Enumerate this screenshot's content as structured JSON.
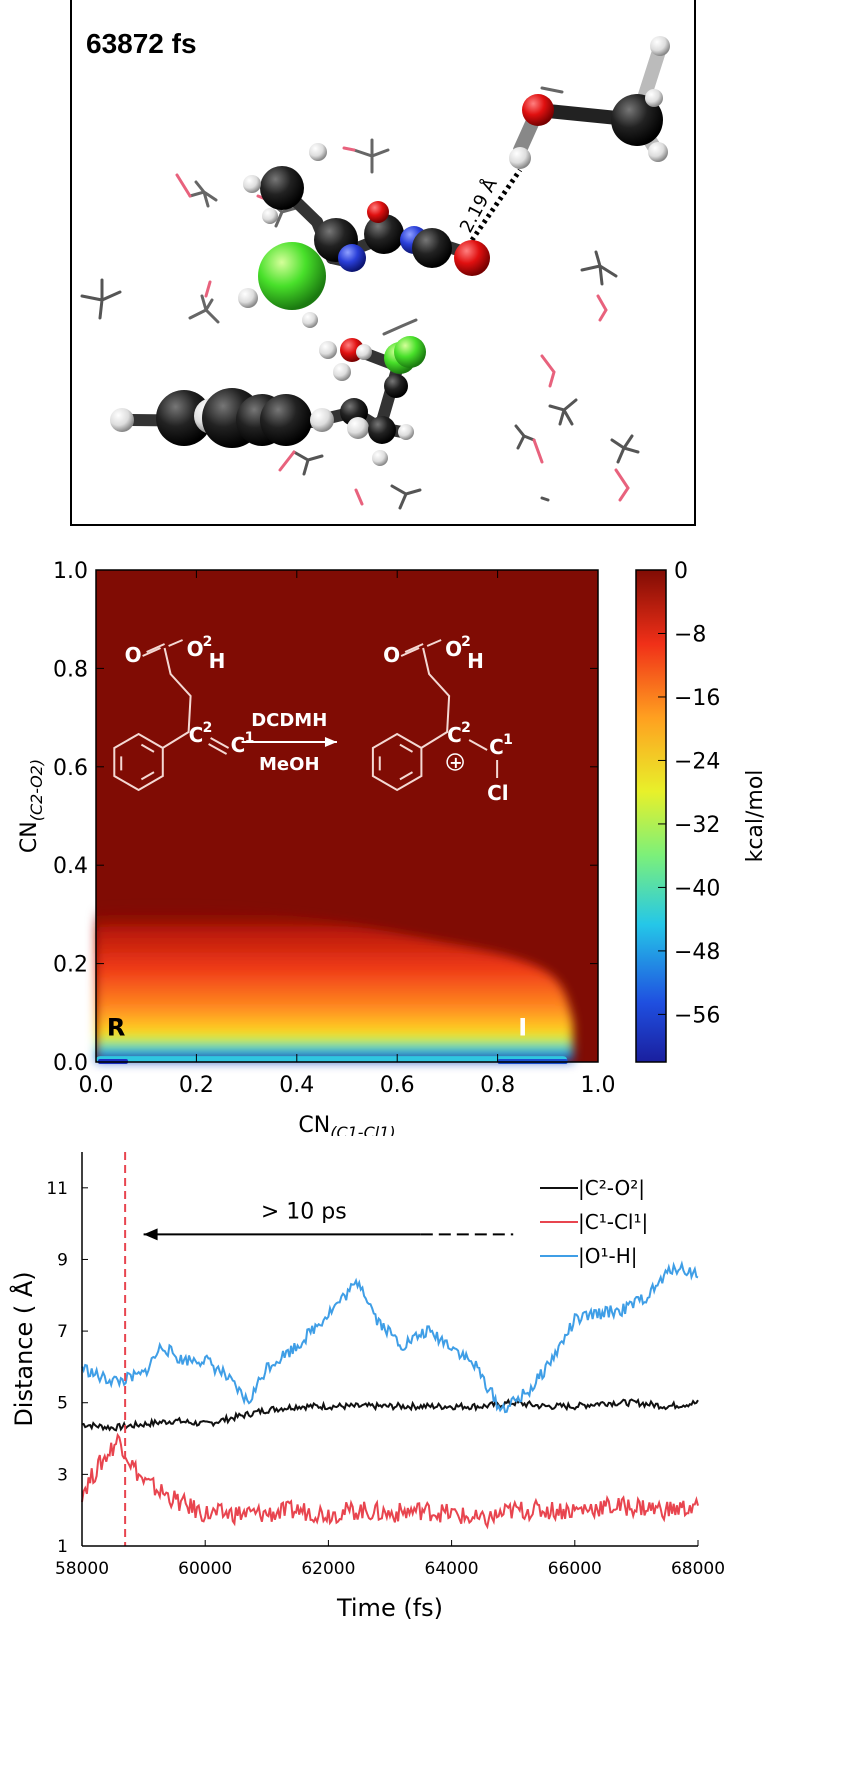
{
  "panel_a": {
    "timestamp": "63872 fs",
    "distance_label": "2.19 Å"
  },
  "chart_data": [
    {
      "type": "heatmap",
      "title": "",
      "xlabel": "CN",
      "xlabel_subscript": "(C1-Cl1)",
      "ylabel": "CN",
      "ylabel_subscript": "(C2-O2)",
      "xlim": [
        0.0,
        1.0
      ],
      "ylim": [
        0.0,
        1.0
      ],
      "xticks": [
        "0.0",
        "0.2",
        "0.4",
        "0.6",
        "0.8",
        "1.0"
      ],
      "yticks": [
        "0.0",
        "0.2",
        "0.4",
        "0.6",
        "0.8",
        "1.0"
      ],
      "colorbar": {
        "label": "kcal/mol",
        "range": [
          -62,
          0
        ],
        "ticks": [
          "0",
          "−8",
          "−16",
          "−24",
          "−32",
          "−40",
          "−48",
          "−56"
        ],
        "colormap": "jet"
      },
      "free_energy_profile": {
        "description_rows": [
          {
            "cn_c2_o2": 0.0,
            "kcal_mol": -62
          },
          {
            "cn_c2_o2": 0.02,
            "kcal_mol": -45
          },
          {
            "cn_c2_o2": 0.04,
            "kcal_mol": -24
          },
          {
            "cn_c2_o2": 0.08,
            "kcal_mol": -14
          },
          {
            "cn_c2_o2": 0.15,
            "kcal_mol": -8
          },
          {
            "cn_c2_o2": 0.25,
            "kcal_mol": -3
          },
          {
            "cn_c2_o2": 0.32,
            "kcal_mol": 0
          }
        ],
        "x_extent": [
          0.0,
          0.95
        ]
      },
      "annotations": [
        {
          "text": "R",
          "x": 0.04,
          "y": 0.07
        },
        {
          "text": "I",
          "x": 0.85,
          "y": 0.07
        }
      ],
      "scheme": {
        "reagent": "DCDMH",
        "solvent": "MeOH",
        "reactant_labels": [
          "O",
          "2",
          "H",
          "O",
          "C",
          "2",
          "C",
          "1"
        ],
        "product_labels": [
          "O",
          "2",
          "H",
          "O",
          "C",
          "2",
          "C",
          "1",
          "Cl",
          "⊕"
        ]
      }
    },
    {
      "type": "line",
      "title": "",
      "xlabel": "Time (fs)",
      "ylabel": "Distance ( Å)",
      "xlim": [
        58000,
        68000
      ],
      "ylim": [
        1,
        12
      ],
      "xticks": [
        "58000",
        "60000",
        "62000",
        "64000",
        "66000",
        "68000"
      ],
      "yticks": [
        "1",
        "3",
        "5",
        "7",
        "9",
        "11"
      ],
      "annotation": {
        "text": "> 10 ps",
        "arrow_from": 65000,
        "arrow_to": 59000,
        "y": 9.7
      },
      "vline": {
        "x": 58700,
        "color": "#e8454f"
      },
      "legend": {
        "placement": "top-right"
      },
      "series": [
        {
          "name": "|C²-O²|",
          "color": "#111111",
          "x": [
            58000,
            58500,
            59000,
            59500,
            60000,
            60500,
            61000,
            61500,
            62000,
            62500,
            63000,
            63500,
            64000,
            64500,
            65000,
            65500,
            66000,
            66500,
            67000,
            67500,
            68000
          ],
          "y": [
            4.4,
            4.3,
            4.4,
            4.5,
            4.4,
            4.6,
            4.8,
            4.9,
            4.9,
            4.9,
            4.9,
            4.9,
            4.9,
            4.9,
            5.0,
            4.9,
            4.9,
            5.0,
            5.0,
            4.9,
            5.0
          ]
        },
        {
          "name": "|C¹-Cl¹|",
          "color": "#e8454f",
          "x": [
            58000,
            58300,
            58600,
            58800,
            59000,
            59300,
            59600,
            60000,
            60500,
            61000,
            61500,
            62000,
            62500,
            63000,
            63500,
            64000,
            64500,
            65000,
            65500,
            66000,
            66500,
            67000,
            67500,
            68000
          ],
          "y": [
            2.5,
            3.3,
            4.0,
            3.3,
            2.8,
            2.5,
            2.2,
            1.9,
            1.9,
            1.9,
            2.0,
            1.9,
            2.0,
            1.9,
            2.0,
            1.9,
            1.7,
            2.0,
            2.0,
            2.0,
            2.1,
            2.1,
            2.0,
            2.1
          ]
        },
        {
          "name": "|O¹-H|",
          "color": "#3f9ee6",
          "x": [
            58000,
            58300,
            58600,
            59000,
            59300,
            59600,
            60000,
            60300,
            60700,
            61000,
            61500,
            62000,
            62500,
            62800,
            63200,
            63600,
            64000,
            64400,
            64800,
            65000,
            65300,
            65700,
            66000,
            66400,
            66800,
            67200,
            67600,
            68000
          ],
          "y": [
            6.0,
            5.7,
            5.6,
            5.8,
            6.6,
            6.2,
            6.2,
            5.8,
            5.0,
            6.0,
            6.6,
            7.5,
            8.4,
            7.3,
            6.6,
            7.0,
            6.6,
            6.0,
            4.8,
            5.0,
            5.4,
            6.4,
            7.3,
            7.5,
            7.6,
            8.0,
            8.8,
            8.6
          ]
        }
      ]
    }
  ]
}
